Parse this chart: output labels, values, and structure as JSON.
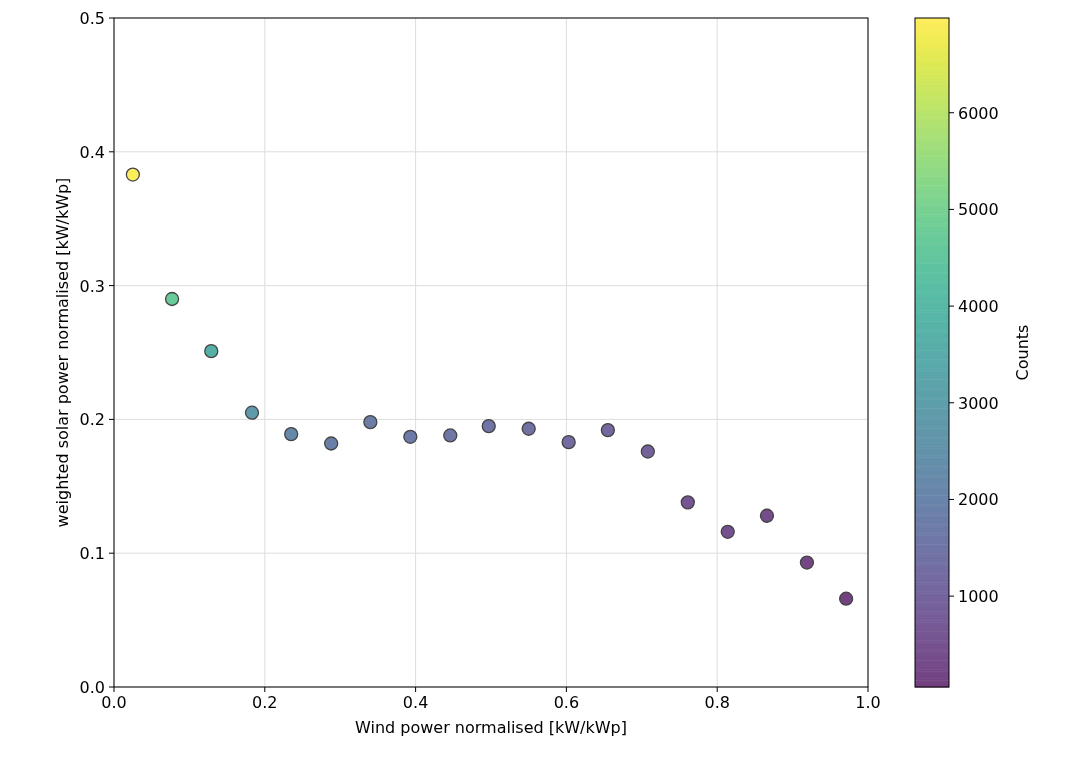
{
  "chart_data": {
    "type": "scatter",
    "xlabel": "Wind power normalised [kW/kWp]",
    "ylabel": "weighted solar power normalised [kW/kWp]",
    "clabel": "Counts",
    "x": [
      0.025,
      0.077,
      0.129,
      0.183,
      0.235,
      0.288,
      0.34,
      0.393,
      0.446,
      0.497,
      0.55,
      0.603,
      0.655,
      0.708,
      0.761,
      0.814,
      0.866,
      0.919,
      0.971
    ],
    "values": [
      0.383,
      0.29,
      0.251,
      0.205,
      0.189,
      0.182,
      0.198,
      0.187,
      0.188,
      0.195,
      0.193,
      0.183,
      0.192,
      0.176,
      0.138,
      0.116,
      0.128,
      0.093,
      0.066
    ],
    "cvalues": [
      6980,
      4700,
      3700,
      2800,
      2200,
      1900,
      1800,
      1700,
      1600,
      1500,
      1400,
      1200,
      1100,
      900,
      600,
      450,
      350,
      200,
      100
    ],
    "clim": [
      60,
      6980
    ],
    "cticks": [
      1000,
      2000,
      3000,
      4000,
      5000,
      6000
    ],
    "xlim": [
      0,
      1
    ],
    "xticks": [
      {
        "value": 0,
        "label": "0.0"
      },
      {
        "value": 0.2,
        "label": "0.2"
      },
      {
        "value": 0.4,
        "label": "0.4"
      },
      {
        "value": 0.6,
        "label": "0.6"
      },
      {
        "value": 0.8,
        "label": "0.8"
      },
      {
        "value": 1,
        "label": "1.0"
      }
    ],
    "ylim": [
      0,
      0.5
    ],
    "yticks": [
      {
        "value": 0,
        "label": "0.0"
      },
      {
        "value": 0.1,
        "label": "0.1"
      },
      {
        "value": 0.2,
        "label": "0.2"
      },
      {
        "value": 0.3,
        "label": "0.3"
      },
      {
        "value": 0.4,
        "label": "0.4"
      },
      {
        "value": 0.5,
        "label": "0.5"
      }
    ],
    "grid": true,
    "marker": "circle"
  }
}
